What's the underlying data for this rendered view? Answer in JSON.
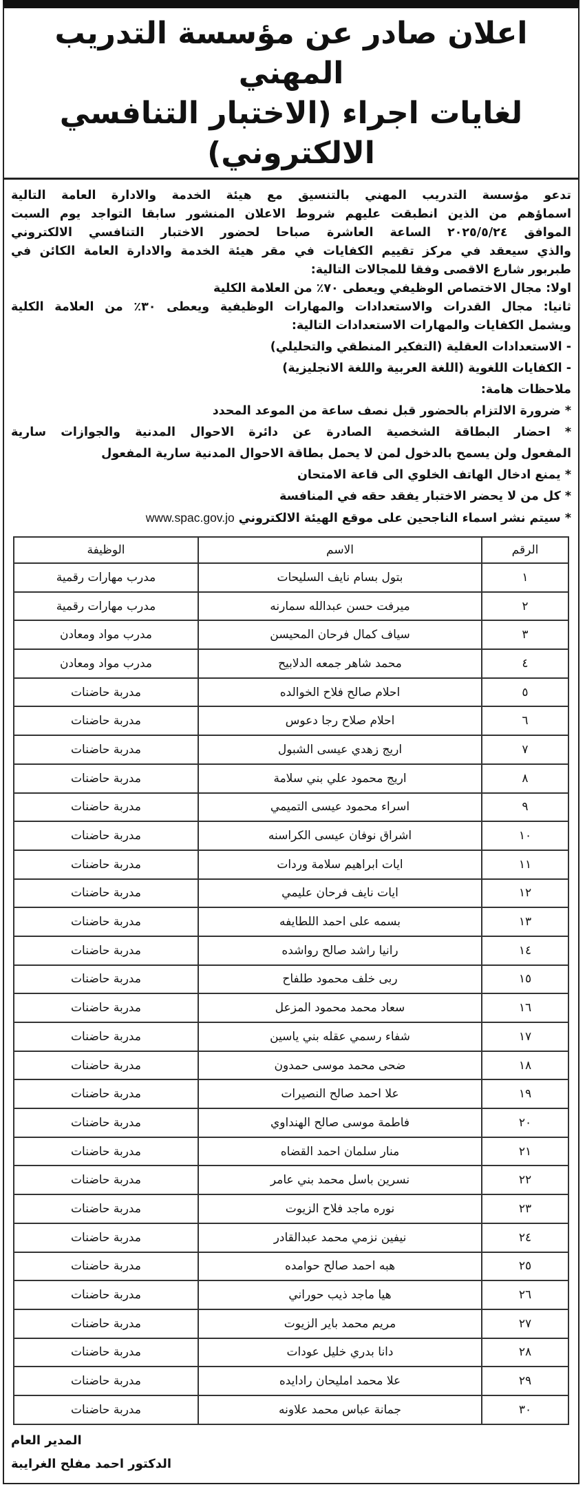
{
  "header": {
    "title_line1": "اعلان صادر عن مؤسسة التدريب المهني",
    "title_line2": "لغايات اجراء (الاختبار التنافسي الالكتروني)"
  },
  "body": {
    "lines": [
      "تدعو مؤسسة التدريب المهني بالتنسيق مع هيئة الخدمة والادارة العامة التالية",
      "اسماؤهم من الذين انطبقت عليهم شروط الاعلان المنشور سابقا التواجد يوم السبت",
      "الموافق ٢٠٢٥/٥/٢٤ الساعة العاشرة صباحا لحضور الاختبار التنافسي الالكتروني",
      "والذي سيعقد في مركز تقييم الكفايات في مقر هيئة الخدمة والادارة العامة الكائن في",
      "طبربور شارع الاقصى وفقا للمجالات التالية:",
      "اولا: مجال الاختصاص الوظيفي ويعطى ٧٠٪ من العلامة الكلية",
      "ثانيا: مجال القدرات والاستعدادات والمهارات الوظيفية ويعطى ٣٠٪ من العلامة الكلية",
      "ويشمل الكفايات والمهارات الاستعدادات التالية:",
      "- الاستعدادات العقلية (التفكير المنطقي والتحليلي)",
      "- الكفايات اللغوية (اللغة العربية واللغة الانجليزية)",
      "ملاحظات هامة:",
      "* ضرورة الالتزام بالحضور قبل نصف ساعة من الموعد المحدد",
      "* احضار البطاقة الشخصية الصادرة عن دائرة الاحوال المدنية والجوازات سارية",
      "المفعول ولن يسمح بالدخول لمن لا يحمل بطاقة الاحوال المدنية سارية المفعول",
      "* يمنع ادخال الهاتف الخلوي الى قاعة الامتحان",
      "* كل من لا يحضر الاختبار يفقد حقه في المنافسة",
      "* سيتم نشر اسماء الناجحين على موقع الهيئة الالكتروني"
    ],
    "website": "www.spac.gov.jo"
  },
  "table": {
    "headers": {
      "num": "الرقم",
      "name": "الاسم",
      "job": "الوظيفة"
    },
    "rows": [
      {
        "num": "١",
        "name": "بتول بسام نايف السليحات",
        "job": "مدرب مهارات رقمية"
      },
      {
        "num": "٢",
        "name": "ميرفت حسن عبدالله سمارنه",
        "job": "مدرب مهارات رقمية"
      },
      {
        "num": "٣",
        "name": "سياف كمال فرحان المحيسن",
        "job": "مدرب مواد ومعادن"
      },
      {
        "num": "٤",
        "name": "محمد شاهر جمعه الدلابيح",
        "job": "مدرب مواد ومعادن"
      },
      {
        "num": "٥",
        "name": "احلام صالح فلاح الخوالده",
        "job": "مدربة حاضنات"
      },
      {
        "num": "٦",
        "name": "احلام صلاح رجا دعوس",
        "job": "مدربة حاضنات"
      },
      {
        "num": "٧",
        "name": "اريج زهدي عيسى الشبول",
        "job": "مدربة حاضنات"
      },
      {
        "num": "٨",
        "name": "اريج محمود علي بني سلامة",
        "job": "مدربة حاضنات"
      },
      {
        "num": "٩",
        "name": "اسراء محمود عيسى التميمي",
        "job": "مدربة حاضنات"
      },
      {
        "num": "١٠",
        "name": "اشراق نوفان عيسى الكراسنه",
        "job": "مدربة حاضنات"
      },
      {
        "num": "١١",
        "name": "ايات ابراهيم سلامة وردات",
        "job": "مدربة حاضنات"
      },
      {
        "num": "١٢",
        "name": "ايات نايف فرحان عليمي",
        "job": "مدربة حاضنات"
      },
      {
        "num": "١٣",
        "name": "بسمه على احمد اللطايفه",
        "job": "مدربة حاضنات"
      },
      {
        "num": "١٤",
        "name": "رانيا راشد صالح رواشده",
        "job": "مدربة حاضنات"
      },
      {
        "num": "١٥",
        "name": "ربى خلف محمود طلفاح",
        "job": "مدربة حاضنات"
      },
      {
        "num": "١٦",
        "name": "سعاد محمد محمود المزعل",
        "job": "مدربة حاضنات"
      },
      {
        "num": "١٧",
        "name": "شفاء رسمي عقله بني ياسين",
        "job": "مدربة حاضنات"
      },
      {
        "num": "١٨",
        "name": "ضحى محمد موسى حمدون",
        "job": "مدربة حاضنات"
      },
      {
        "num": "١٩",
        "name": "علا احمد صالح النصيرات",
        "job": "مدربة حاضنات"
      },
      {
        "num": "٢٠",
        "name": "فاطمة موسى صالح الهنداوي",
        "job": "مدربة حاضنات"
      },
      {
        "num": "٢١",
        "name": "منار سلمان احمد القضاه",
        "job": "مدربة حاضنات"
      },
      {
        "num": "٢٢",
        "name": "نسرين باسل محمد بني عامر",
        "job": "مدربة حاضنات"
      },
      {
        "num": "٢٣",
        "name": "نوره ماجد فلاح الزيوت",
        "job": "مدربة حاضنات"
      },
      {
        "num": "٢٤",
        "name": "نيفين نزمي محمد عبدالقادر",
        "job": "مدربة حاضنات"
      },
      {
        "num": "٢٥",
        "name": "هبه احمد صالح حوامده",
        "job": "مدربة حاضنات"
      },
      {
        "num": "٢٦",
        "name": "هيا ماجد ذيب حوراني",
        "job": "مدربة حاضنات"
      },
      {
        "num": "٢٧",
        "name": "مريم محمد باير الزيوت",
        "job": "مدربة حاضنات"
      },
      {
        "num": "٢٨",
        "name": "دانا بدري خليل عودات",
        "job": "مدربة حاضنات"
      },
      {
        "num": "٢٩",
        "name": "علا محمد امليحان رادايده",
        "job": "مدربة حاضنات"
      },
      {
        "num": "٣٠",
        "name": "جمانة عباس محمد علاونه",
        "job": "مدربة حاضنات"
      }
    ]
  },
  "signature": {
    "role": "المدير العام",
    "name": "الدكتور احمد مفلح الغرايبة"
  }
}
